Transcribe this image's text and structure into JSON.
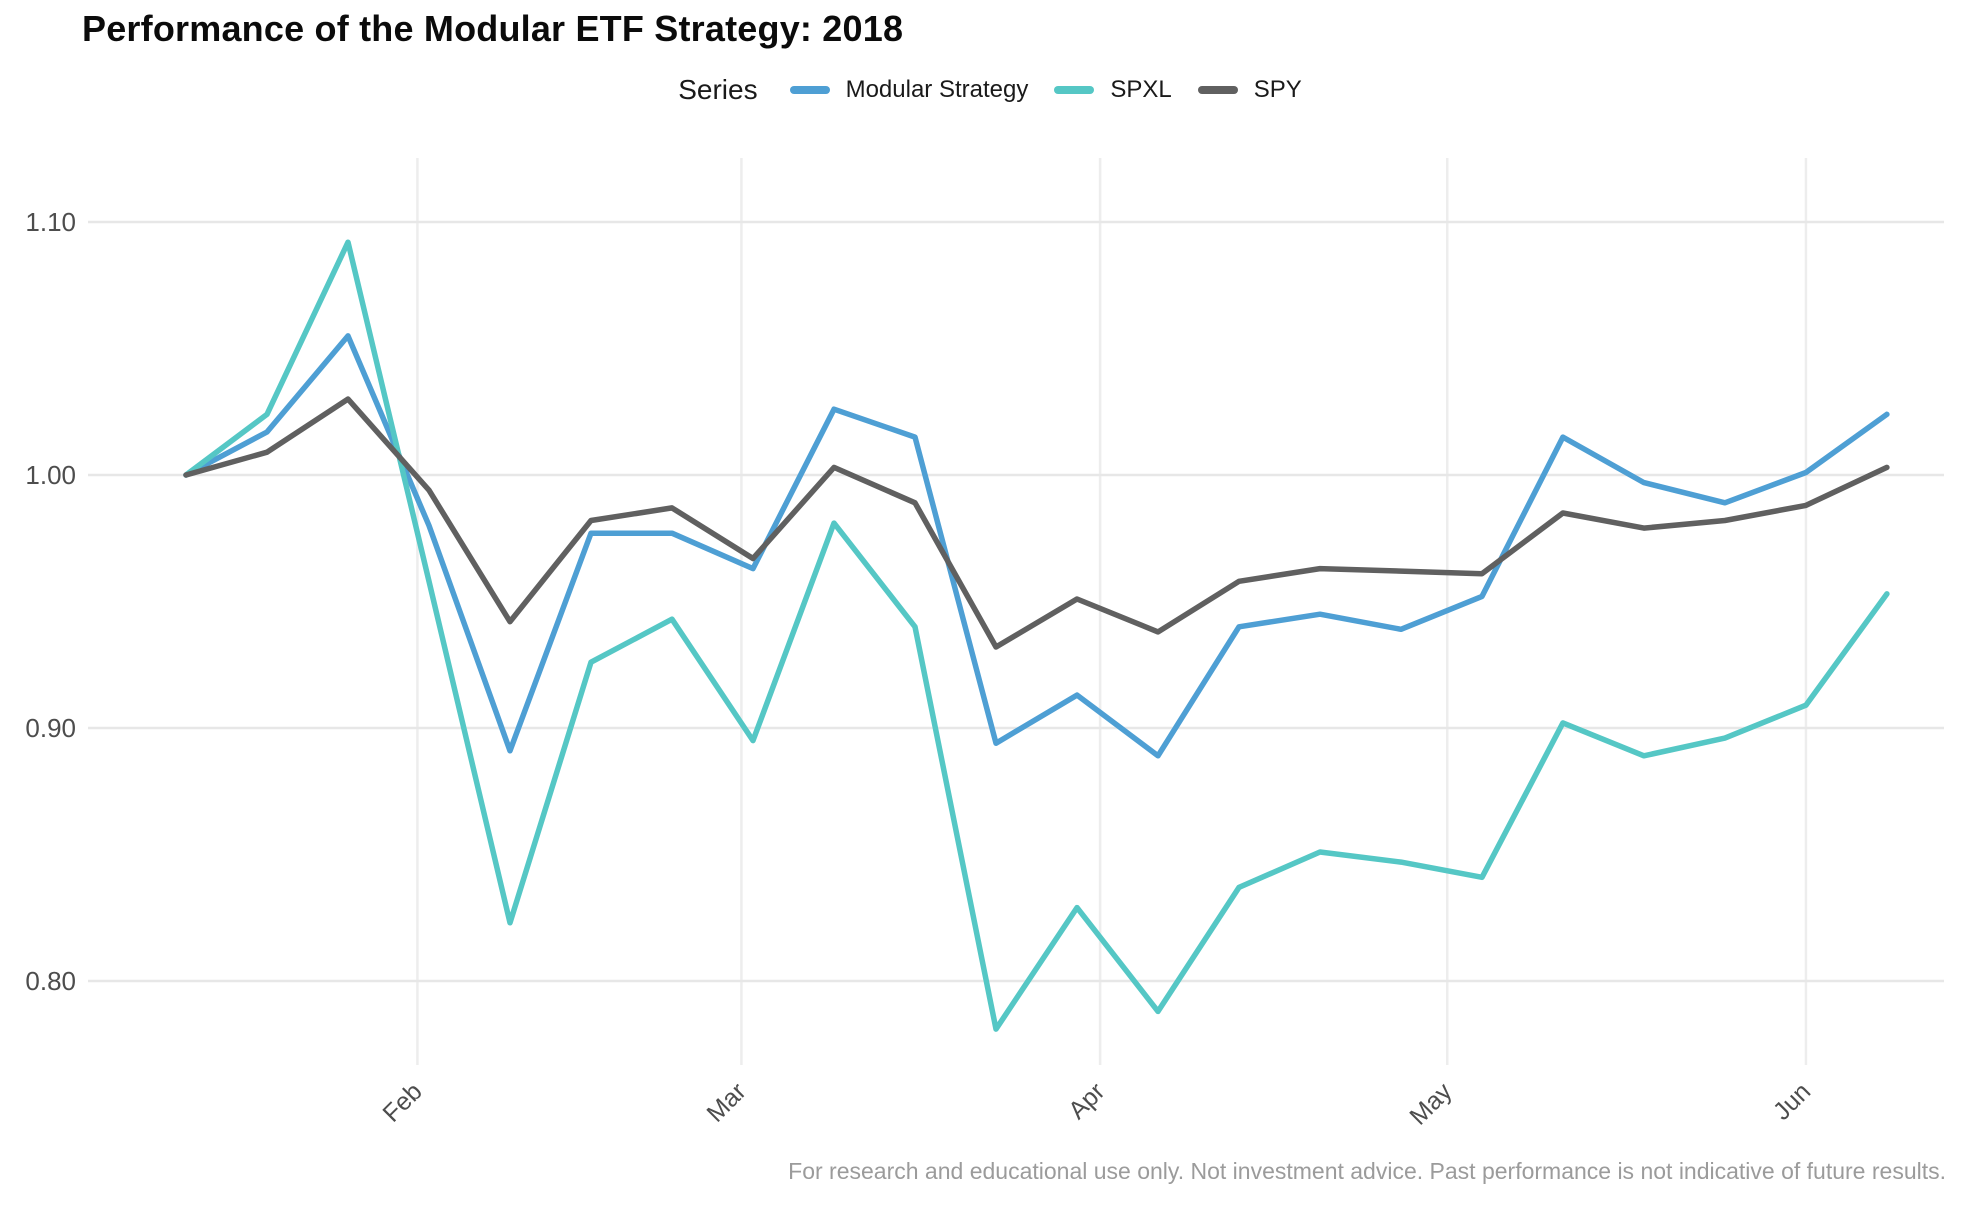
{
  "title": "Performance of the Modular ETF Strategy: 2018",
  "legend": {
    "label": "Series",
    "items": [
      {
        "name": "Modular Strategy",
        "color": "#4E9FD4"
      },
      {
        "name": "SPXL",
        "color": "#55C7C5"
      },
      {
        "name": "SPY",
        "color": "#606060"
      }
    ]
  },
  "footer": "For research and educational use only. Not investment advice. Past performance is not indicative of future results.",
  "chart_data": {
    "type": "line",
    "title": "Performance of the Modular ETF Strategy: 2018",
    "xlabel": "",
    "ylabel": "",
    "grid": true,
    "legend_position": "top-center",
    "y_ticks": [
      0.8,
      0.9,
      1.0,
      1.1
    ],
    "ylim": [
      0.767,
      1.125
    ],
    "x_ticks": [
      {
        "label": "Feb",
        "day": 20
      },
      {
        "label": "Mar",
        "day": 48
      },
      {
        "label": "Apr",
        "day": 79
      },
      {
        "label": "May",
        "day": 109
      },
      {
        "label": "Jun",
        "day": 140
      }
    ],
    "xlim_days": [
      -8.3,
      151.6
    ],
    "weeks": [
      "2018-01-12",
      "2018-01-19",
      "2018-01-26",
      "2018-02-02",
      "2018-02-09",
      "2018-02-16",
      "2018-02-23",
      "2018-03-02",
      "2018-03-09",
      "2018-03-16",
      "2018-03-23",
      "2018-03-30",
      "2018-04-06",
      "2018-04-13",
      "2018-04-20",
      "2018-04-27",
      "2018-05-04",
      "2018-05-11",
      "2018-05-18",
      "2018-05-25",
      "2018-06-01",
      "2018-06-08"
    ],
    "day_offsets": [
      0,
      7,
      14,
      21,
      28,
      35,
      42,
      49,
      56,
      63,
      70,
      77,
      84,
      91,
      98,
      105,
      112,
      119,
      126,
      133,
      140,
      147
    ],
    "series": [
      {
        "name": "Modular Strategy",
        "color": "#4E9FD4",
        "values": [
          1.0,
          1.017,
          1.055,
          0.98,
          0.891,
          0.977,
          0.977,
          0.963,
          1.026,
          1.015,
          0.894,
          0.913,
          0.889,
          0.94,
          0.945,
          0.939,
          0.952,
          1.015,
          0.997,
          0.989,
          1.001,
          1.024
        ]
      },
      {
        "name": "SPXL",
        "color": "#55C7C5",
        "values": [
          1.0,
          1.024,
          1.092,
          0.958,
          0.823,
          0.926,
          0.943,
          0.895,
          0.981,
          0.94,
          0.781,
          0.829,
          0.788,
          0.837,
          0.851,
          0.847,
          0.841,
          0.902,
          0.889,
          0.896,
          0.909,
          0.953
        ]
      },
      {
        "name": "SPY",
        "color": "#606060",
        "values": [
          1.0,
          1.009,
          1.03,
          0.994,
          0.942,
          0.982,
          0.987,
          0.967,
          1.003,
          0.989,
          0.932,
          0.951,
          0.938,
          0.958,
          0.963,
          0.962,
          0.961,
          0.985,
          0.979,
          0.982,
          0.988,
          1.003
        ]
      }
    ]
  }
}
